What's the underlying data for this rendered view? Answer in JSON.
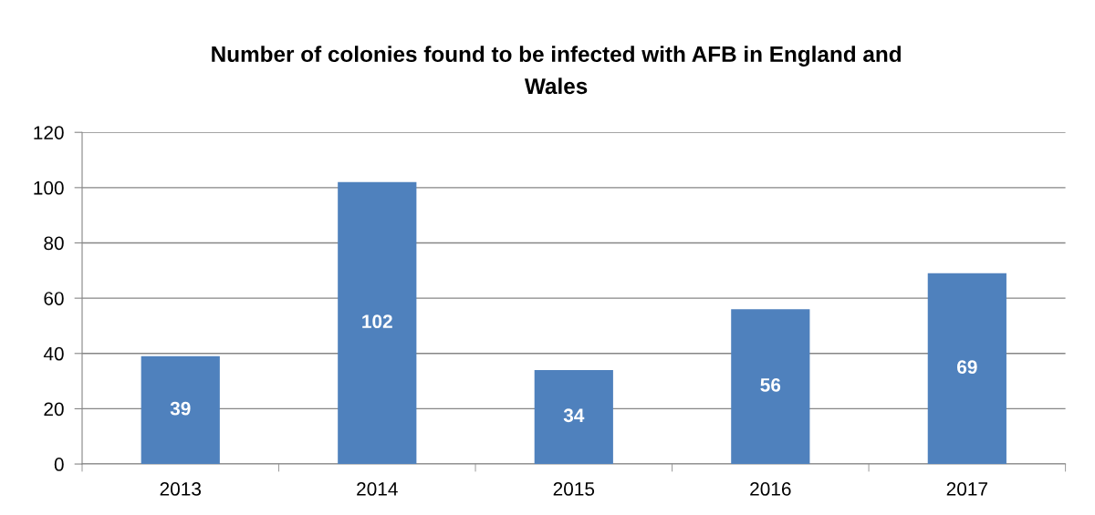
{
  "chart_data": {
    "type": "bar",
    "title": "Number of colonies found to be infected with AFB in England and\nWales",
    "categories": [
      "2013",
      "2014",
      "2015",
      "2016",
      "2017"
    ],
    "values": [
      39,
      102,
      34,
      56,
      69
    ],
    "color": "#4f81bd",
    "ylim": [
      0,
      120
    ],
    "yticks": [
      0,
      20,
      40,
      60,
      80,
      100,
      120
    ],
    "grid": "y",
    "data_labels": true
  }
}
